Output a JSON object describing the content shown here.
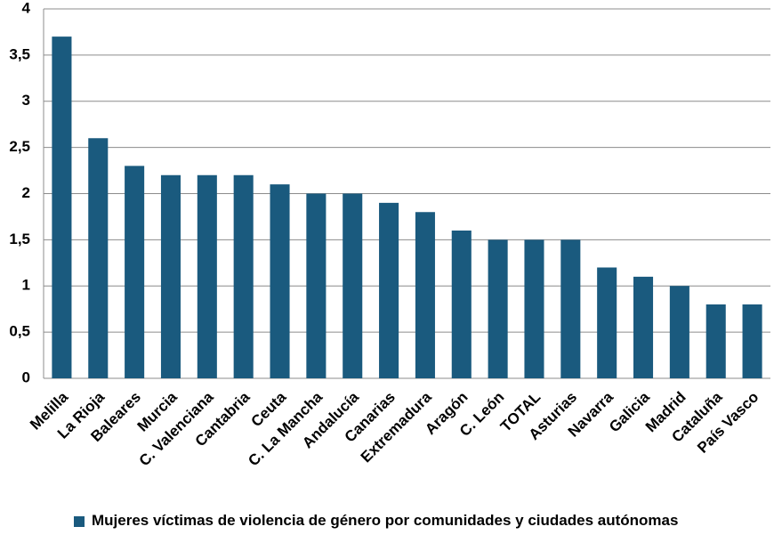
{
  "chart_data": {
    "type": "bar",
    "categories": [
      "Melilla",
      "La Rioja",
      "Baleares",
      "Murcia",
      "C. Valenciana",
      "Cantabria",
      "Ceuta",
      "C. La Mancha",
      "Andalucía",
      "Canarias",
      "Extremadura",
      "Aragón",
      "C. León",
      "TOTAL",
      "Asturias",
      "Navarra",
      "Galicia",
      "Madrid",
      "Cataluña",
      "País Vasco"
    ],
    "series": [
      {
        "name": "Mujeres víctimas de violencia de género por comunidades y ciudades autónomas",
        "color": "#1a5a7e",
        "values": [
          3.7,
          2.6,
          2.3,
          2.2,
          2.2,
          2.2,
          2.1,
          2.0,
          2.0,
          1.9,
          1.8,
          1.6,
          1.5,
          1.5,
          1.5,
          1.2,
          1.1,
          1.0,
          0.8,
          0.8
        ]
      }
    ],
    "ylim": [
      0,
      4
    ],
    "yticks": [
      0,
      {
        "value": 0.5,
        "label": "0,5"
      },
      1,
      {
        "value": 1.5,
        "label": "1,5"
      },
      2,
      {
        "value": 2.5,
        "label": "2,5"
      },
      3,
      {
        "value": 3.5,
        "label": "3,5"
      },
      4
    ],
    "grid": true
  }
}
